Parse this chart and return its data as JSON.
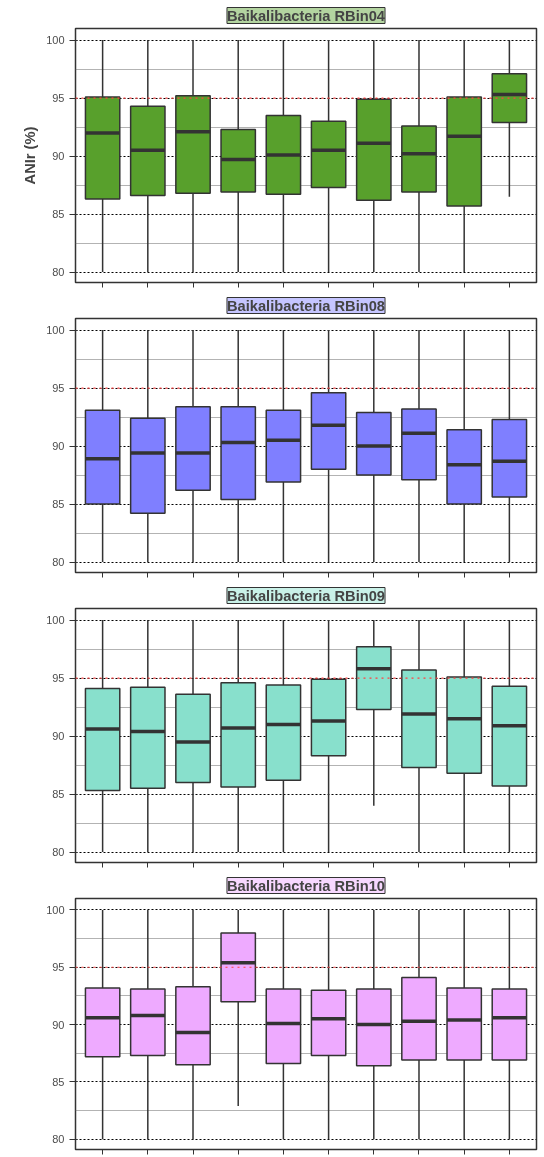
{
  "chart_data": [
    {
      "type": "box",
      "title": "Baikalibacteria RBin04",
      "ylabel": "ANIr (%)",
      "categories": [
        null,
        null,
        null,
        null,
        null,
        null,
        null,
        null,
        null,
        null
      ],
      "color": "#58a02c",
      "ylim": [
        79.1,
        101
      ],
      "yticks": [
        80,
        85,
        90,
        95,
        100
      ],
      "grid": "y",
      "tick_labels": "y",
      "ref_lines": [
        {
          "axis": "y",
          "value": 95,
          "color": "#ff4040",
          "line_style": "dotted"
        }
      ],
      "boxes": [
        {
          "low": 80,
          "q1": 86.3,
          "median": 92.0,
          "q3": 95.1,
          "high": 100
        },
        {
          "low": 80,
          "q1": 86.6,
          "median": 90.5,
          "q3": 94.3,
          "high": 100
        },
        {
          "low": 80,
          "q1": 86.8,
          "median": 92.1,
          "q3": 95.2,
          "high": 100
        },
        {
          "low": 80,
          "q1": 86.9,
          "median": 89.7,
          "q3": 92.3,
          "high": 100
        },
        {
          "low": 80,
          "q1": 86.7,
          "median": 90.1,
          "q3": 93.5,
          "high": 100
        },
        {
          "low": 80,
          "q1": 87.3,
          "median": 90.5,
          "q3": 93.0,
          "high": 100
        },
        {
          "low": 80,
          "q1": 86.2,
          "median": 91.1,
          "q3": 94.9,
          "high": 100
        },
        {
          "low": 80,
          "q1": 86.9,
          "median": 90.2,
          "q3": 92.6,
          "high": 100
        },
        {
          "low": 80,
          "q1": 85.7,
          "median": 91.7,
          "q3": 95.1,
          "high": 100
        },
        {
          "low": 86.5,
          "q1": 92.9,
          "median": 95.3,
          "q3": 97.1,
          "high": 100
        }
      ]
    },
    {
      "type": "box",
      "title": "Baikalibacteria RBin08",
      "categories": [
        null,
        null,
        null,
        null,
        null,
        null,
        null,
        null,
        null,
        null
      ],
      "color": "#7f7fff",
      "ylim": [
        79.1,
        101
      ],
      "yticks": [
        80,
        85,
        90,
        95,
        100
      ],
      "grid": "y",
      "tick_labels": "y",
      "ref_lines": [
        {
          "axis": "y",
          "value": 95,
          "color": "#ff4040",
          "line_style": "dotted"
        }
      ],
      "boxes": [
        {
          "low": 80,
          "q1": 85.0,
          "median": 88.9,
          "q3": 93.1,
          "high": 100
        },
        {
          "low": 80,
          "q1": 84.2,
          "median": 89.4,
          "q3": 92.4,
          "high": 100
        },
        {
          "low": 80,
          "q1": 86.2,
          "median": 89.4,
          "q3": 93.4,
          "high": 100
        },
        {
          "low": 80,
          "q1": 85.4,
          "median": 90.3,
          "q3": 93.4,
          "high": 100
        },
        {
          "low": 80,
          "q1": 86.9,
          "median": 90.5,
          "q3": 93.1,
          "high": 100
        },
        {
          "low": 80,
          "q1": 88.0,
          "median": 91.8,
          "q3": 94.6,
          "high": 100
        },
        {
          "low": 80,
          "q1": 87.5,
          "median": 90.0,
          "q3": 92.9,
          "high": 100
        },
        {
          "low": 80,
          "q1": 87.1,
          "median": 91.1,
          "q3": 93.2,
          "high": 100
        },
        {
          "low": 80,
          "q1": 85.0,
          "median": 88.4,
          "q3": 91.4,
          "high": 100
        },
        {
          "low": 80,
          "q1": 85.6,
          "median": 88.7,
          "q3": 92.3,
          "high": 100
        }
      ]
    },
    {
      "type": "box",
      "title": "Baikalibacteria RBin09",
      "categories": [
        null,
        null,
        null,
        null,
        null,
        null,
        null,
        null,
        null,
        null
      ],
      "color": "#88e0cc",
      "ylim": [
        79.1,
        101
      ],
      "yticks": [
        80,
        85,
        90,
        95,
        100
      ],
      "grid": "y",
      "tick_labels": "y",
      "ref_lines": [
        {
          "axis": "y",
          "value": 95,
          "color": "#ff4040",
          "line_style": "dotted"
        }
      ],
      "boxes": [
        {
          "low": 80,
          "q1": 85.3,
          "median": 90.6,
          "q3": 94.1,
          "high": 100
        },
        {
          "low": 80,
          "q1": 85.5,
          "median": 90.4,
          "q3": 94.2,
          "high": 100
        },
        {
          "low": 80,
          "q1": 86.0,
          "median": 89.5,
          "q3": 93.6,
          "high": 100
        },
        {
          "low": 80,
          "q1": 85.6,
          "median": 90.7,
          "q3": 94.6,
          "high": 100
        },
        {
          "low": 80,
          "q1": 86.2,
          "median": 91.0,
          "q3": 94.4,
          "high": 100
        },
        {
          "low": 80,
          "q1": 88.3,
          "median": 91.3,
          "q3": 94.9,
          "high": 100
        },
        {
          "low": 84.0,
          "q1": 92.3,
          "median": 95.8,
          "q3": 97.7,
          "high": 100
        },
        {
          "low": 80,
          "q1": 87.3,
          "median": 91.9,
          "q3": 95.7,
          "high": 100
        },
        {
          "low": 80,
          "q1": 86.8,
          "median": 91.5,
          "q3": 95.1,
          "high": 100
        },
        {
          "low": 80,
          "q1": 85.7,
          "median": 90.9,
          "q3": 94.3,
          "high": 100
        }
      ]
    },
    {
      "type": "box",
      "title": "Baikalibacteria RBin10",
      "categories": [
        null,
        null,
        null,
        null,
        null,
        null,
        null,
        null,
        null,
        null
      ],
      "color": "#eeaaff",
      "ylim": [
        79.1,
        101
      ],
      "yticks": [
        80,
        85,
        90,
        95,
        100
      ],
      "grid": "y",
      "tick_labels": "y",
      "ref_lines": [
        {
          "axis": "y",
          "value": 95,
          "color": "#ff4040",
          "line_style": "dotted"
        }
      ],
      "boxes": [
        {
          "low": 80,
          "q1": 87.2,
          "median": 90.6,
          "q3": 93.2,
          "high": 100
        },
        {
          "low": 80,
          "q1": 87.3,
          "median": 90.8,
          "q3": 93.1,
          "high": 100
        },
        {
          "low": 80,
          "q1": 86.5,
          "median": 89.3,
          "q3": 93.3,
          "high": 100
        },
        {
          "low": 82.9,
          "q1": 92.0,
          "median": 95.4,
          "q3": 98.0,
          "high": 100
        },
        {
          "low": 80,
          "q1": 86.6,
          "median": 90.1,
          "q3": 93.1,
          "high": 100
        },
        {
          "low": 80,
          "q1": 87.3,
          "median": 90.5,
          "q3": 93.0,
          "high": 100
        },
        {
          "low": 80,
          "q1": 86.4,
          "median": 90.0,
          "q3": 93.1,
          "high": 100
        },
        {
          "low": 80,
          "q1": 86.9,
          "median": 90.3,
          "q3": 94.1,
          "high": 100
        },
        {
          "low": 80,
          "q1": 86.9,
          "median": 90.4,
          "q3": 93.2,
          "high": 100
        },
        {
          "low": 80,
          "q1": 86.9,
          "median": 90.6,
          "q3": 93.1,
          "high": 100
        }
      ]
    }
  ]
}
